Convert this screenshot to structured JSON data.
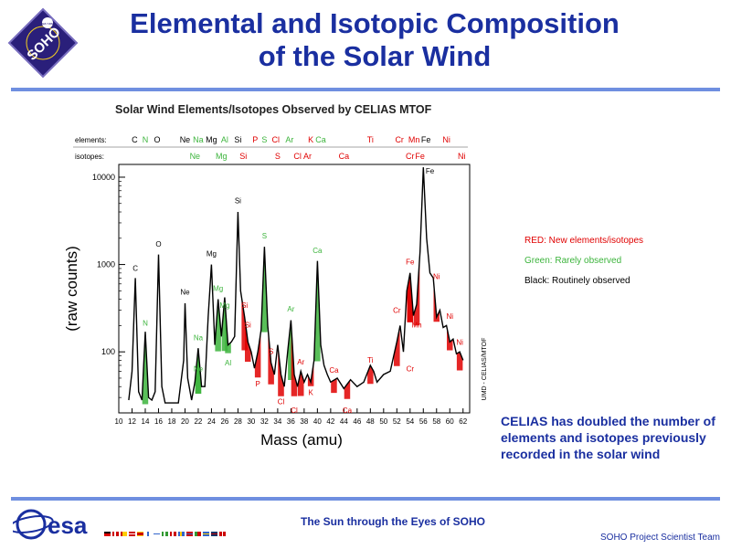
{
  "logo": {
    "text": "SOHO",
    "badge_text": "esa nasa"
  },
  "header": {
    "title_line1": "Elemental and Isotopic Composition",
    "title_line2": "of the Solar Wind"
  },
  "colors": {
    "title_blue": "#1a2fa0",
    "rule_blue": "#6f8fe0",
    "new_red": "#e00000",
    "rare_green": "#3cb43c",
    "routine_black": "#000000"
  },
  "chart_data": {
    "type": "line",
    "title": "Solar Wind Elements/Isotopes Observed by CELIAS MTOF",
    "xlabel": "Mass (amu)",
    "ylabel": "(raw counts)",
    "y_scale": "log",
    "ylim": [
      20,
      14000
    ],
    "xlim": [
      10,
      63
    ],
    "x_ticks": [
      10,
      12,
      14,
      16,
      18,
      20,
      22,
      24,
      26,
      28,
      30,
      32,
      34,
      36,
      38,
      40,
      42,
      44,
      46,
      48,
      50,
      52,
      54,
      56,
      58,
      60,
      62
    ],
    "y_ticks": [
      100,
      1000,
      10000
    ],
    "credit": "UMD - CELIAS/MTOF",
    "row_labels": {
      "elements": "elements:",
      "isotopes": "isotopes:"
    },
    "elements_row": [
      {
        "label": "C",
        "x": 12.4,
        "c": "black"
      },
      {
        "label": "N",
        "x": 14,
        "c": "green"
      },
      {
        "label": "O",
        "x": 15.8,
        "c": "black"
      },
      {
        "label": "Ne",
        "x": 20,
        "c": "black"
      },
      {
        "label": "Na",
        "x": 22,
        "c": "green"
      },
      {
        "label": "Mg",
        "x": 24,
        "c": "black"
      },
      {
        "label": "Al",
        "x": 26,
        "c": "green"
      },
      {
        "label": "Si",
        "x": 28,
        "c": "black"
      },
      {
        "label": "P",
        "x": 30.6,
        "c": "red"
      },
      {
        "label": "S",
        "x": 32,
        "c": "green"
      },
      {
        "label": "Cl",
        "x": 33.7,
        "c": "red"
      },
      {
        "label": "Ar",
        "x": 35.8,
        "c": "green"
      },
      {
        "label": "K",
        "x": 39,
        "c": "red"
      },
      {
        "label": "Ca",
        "x": 40.5,
        "c": "green"
      },
      {
        "label": "Ti",
        "x": 48,
        "c": "red"
      },
      {
        "label": "Cr",
        "x": 52.4,
        "c": "red"
      },
      {
        "label": "Mn",
        "x": 54.6,
        "c": "red"
      },
      {
        "label": "Fe",
        "x": 56.4,
        "c": "black"
      },
      {
        "label": "Ni",
        "x": 59.5,
        "c": "red"
      }
    ],
    "isotopes_row": [
      {
        "label": "Ne",
        "x": 21.5,
        "c": "green"
      },
      {
        "label": "Mg",
        "x": 25.5,
        "c": "green"
      },
      {
        "label": "Si",
        "x": 28.8,
        "c": "red"
      },
      {
        "label": "S",
        "x": 34,
        "c": "red"
      },
      {
        "label": "Cl",
        "x": 37,
        "c": "red"
      },
      {
        "label": "Ar",
        "x": 38.5,
        "c": "red"
      },
      {
        "label": "Ca",
        "x": 44,
        "c": "red"
      },
      {
        "label": "Cr",
        "x": 54,
        "c": "red"
      },
      {
        "label": "Fe",
        "x": 55.5,
        "c": "red"
      },
      {
        "label": "Ni",
        "x": 61.8,
        "c": "red"
      }
    ],
    "series": [
      {
        "points": [
          [
            11.5,
            28
          ],
          [
            12,
            60
          ],
          [
            12.5,
            700
          ],
          [
            13,
            35
          ],
          [
            13.5,
            28
          ],
          [
            14,
            170
          ],
          [
            14.5,
            30
          ],
          [
            15,
            28
          ],
          [
            15.5,
            35
          ],
          [
            16,
            1300
          ],
          [
            16.5,
            40
          ],
          [
            17,
            26
          ],
          [
            18,
            26
          ],
          [
            19,
            26
          ],
          [
            19.8,
            80
          ],
          [
            20,
            360
          ],
          [
            20.4,
            50
          ],
          [
            21,
            28
          ],
          [
            21.5,
            45
          ],
          [
            22,
            110
          ],
          [
            22.5,
            40
          ],
          [
            23,
            40
          ],
          [
            23.5,
            250
          ],
          [
            24,
            1000
          ],
          [
            24.5,
            120
          ],
          [
            25,
            400
          ],
          [
            25.5,
            150
          ],
          [
            26,
            420
          ],
          [
            26.5,
            120
          ],
          [
            27,
            130
          ],
          [
            27.5,
            150
          ],
          [
            28,
            4000
          ],
          [
            28.4,
            500
          ],
          [
            29,
            250
          ],
          [
            29.5,
            130
          ],
          [
            30,
            100
          ],
          [
            30.5,
            65
          ],
          [
            31,
            100
          ],
          [
            31.5,
            180
          ],
          [
            32,
            1600
          ],
          [
            32.5,
            200
          ],
          [
            33,
            75
          ],
          [
            33.5,
            55
          ],
          [
            34,
            120
          ],
          [
            34.5,
            55
          ],
          [
            35,
            40
          ],
          [
            35.5,
            100
          ],
          [
            36,
            230
          ],
          [
            36.5,
            55
          ],
          [
            37,
            40
          ],
          [
            37.5,
            60
          ],
          [
            38,
            45
          ],
          [
            38.5,
            55
          ],
          [
            39,
            45
          ],
          [
            39.5,
            80
          ],
          [
            40,
            1100
          ],
          [
            40.5,
            120
          ],
          [
            41,
            70
          ],
          [
            41.5,
            55
          ],
          [
            42,
            45
          ],
          [
            43,
            50
          ],
          [
            44,
            38
          ],
          [
            45,
            48
          ],
          [
            46,
            40
          ],
          [
            47,
            45
          ],
          [
            48,
            70
          ],
          [
            48.5,
            60
          ],
          [
            49,
            45
          ],
          [
            50,
            55
          ],
          [
            51,
            60
          ],
          [
            52,
            130
          ],
          [
            52.5,
            200
          ],
          [
            53,
            100
          ],
          [
            53.5,
            500
          ],
          [
            54,
            800
          ],
          [
            54.5,
            260
          ],
          [
            55,
            350
          ],
          [
            55.5,
            1400
          ],
          [
            56,
            13000
          ],
          [
            56.5,
            2000
          ],
          [
            57,
            800
          ],
          [
            57.5,
            700
          ],
          [
            58,
            250
          ],
          [
            58.5,
            300
          ],
          [
            59,
            190
          ],
          [
            59.5,
            200
          ],
          [
            60,
            130
          ],
          [
            60.5,
            140
          ],
          [
            61,
            95
          ],
          [
            61.5,
            100
          ],
          [
            62,
            80
          ]
        ]
      }
    ],
    "peak_labels": [
      {
        "label": "C",
        "x": 12.5,
        "y": 850,
        "c": "black"
      },
      {
        "label": "N",
        "x": 14,
        "y": 200,
        "c": "green"
      },
      {
        "label": "O",
        "x": 16,
        "y": 1600,
        "c": "black"
      },
      {
        "label": "Ne",
        "x": 20,
        "y": 450,
        "c": "black"
      },
      {
        "label": "Na",
        "x": 22,
        "y": 135,
        "c": "green"
      },
      {
        "label": "Ne",
        "x": 22,
        "y": 60,
        "c": "green"
      },
      {
        "label": "Mg",
        "x": 24,
        "y": 1250,
        "c": "black"
      },
      {
        "label": "Mg",
        "x": 25,
        "y": 500,
        "c": "green"
      },
      {
        "label": "Mg",
        "x": 26,
        "y": 320,
        "c": "green"
      },
      {
        "label": "Al",
        "x": 26.5,
        "y": 70,
        "c": "green"
      },
      {
        "label": "Si",
        "x": 28,
        "y": 5000,
        "c": "black"
      },
      {
        "label": "Si",
        "x": 29,
        "y": 320,
        "c": "red"
      },
      {
        "label": "Si",
        "x": 29.5,
        "y": 190,
        "c": "red"
      },
      {
        "label": "P",
        "x": 31,
        "y": 40,
        "c": "red"
      },
      {
        "label": "S",
        "x": 32,
        "y": 2000,
        "c": "green"
      },
      {
        "label": "S",
        "x": 33,
        "y": 95,
        "c": "red"
      },
      {
        "label": "Cl",
        "x": 34.5,
        "y": 25,
        "c": "red"
      },
      {
        "label": "Ar",
        "x": 36,
        "y": 290,
        "c": "green"
      },
      {
        "label": "Cl",
        "x": 36.5,
        "y": 20,
        "c": "red"
      },
      {
        "label": "Ar",
        "x": 37.5,
        "y": 72,
        "c": "red"
      },
      {
        "label": "K",
        "x": 39,
        "y": 32,
        "c": "red"
      },
      {
        "label": "Ca",
        "x": 40,
        "y": 1350,
        "c": "green"
      },
      {
        "label": "Ca",
        "x": 42.5,
        "y": 58,
        "c": "red"
      },
      {
        "label": "Ca",
        "x": 44.5,
        "y": 20,
        "c": "red"
      },
      {
        "label": "Ti",
        "x": 48,
        "y": 75,
        "c": "red"
      },
      {
        "label": "Cr",
        "x": 52,
        "y": 280,
        "c": "red"
      },
      {
        "label": "Cr",
        "x": 54,
        "y": 60,
        "c": "red"
      },
      {
        "label": "Fe",
        "x": 54,
        "y": 1000,
        "c": "red"
      },
      {
        "label": "Mn",
        "x": 55,
        "y": 190,
        "c": "red"
      },
      {
        "label": "Fe",
        "x": 57,
        "y": 11000,
        "c": "black"
      },
      {
        "label": "Ni",
        "x": 58,
        "y": 680,
        "c": "red"
      },
      {
        "label": "Ni",
        "x": 60,
        "y": 240,
        "c": "red"
      },
      {
        "label": "Ni",
        "x": 61.5,
        "y": 120,
        "c": "red"
      }
    ]
  },
  "legend": {
    "red": "RED: New elements/isotopes",
    "green": "Green: Rarely observed",
    "black": "Black: Routinely observed"
  },
  "note": "CELIAS has doubled the number of elements and isotopes previously recorded in the solar wind",
  "footer": {
    "esa_text": "esa",
    "center": "The Sun through the Eyes of SOHO",
    "right": "SOHO Project Scientist Team"
  }
}
